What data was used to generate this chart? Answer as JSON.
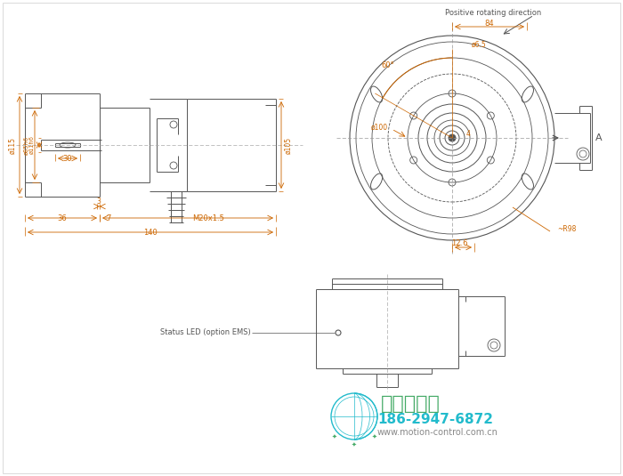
{
  "bg_color": "#ffffff",
  "line_color": "#555555",
  "dim_color": "#cc6600",
  "fig_width": 7.0,
  "fig_height": 5.35,
  "border_color": "#aaaaaa",
  "watermark_text1": "西安德伍拓",
  "watermark_text2": "186-2947-6872",
  "watermark_text3": "www.motion-control.com.cn",
  "watermark_logo_color": "#22bbcc",
  "watermark_green": "#44aa66"
}
